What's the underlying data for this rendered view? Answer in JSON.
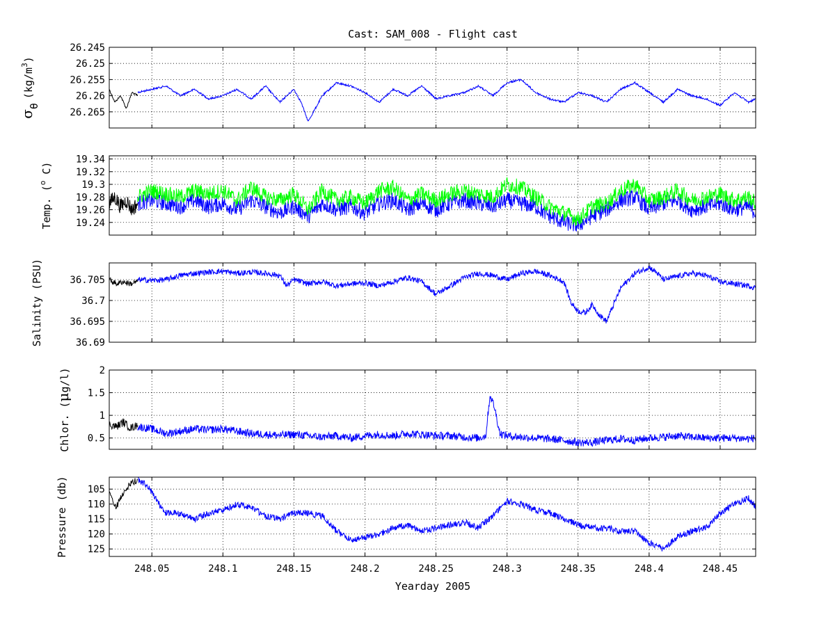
{
  "figure": {
    "title": "Cast: SAM_008 - Flight cast",
    "xlabel": "Yearday 2005"
  },
  "colors": {
    "background": "#ffffff",
    "axes": "#000000",
    "grid": "#000000",
    "black_series": "#000000",
    "blue_series": "#0000ff",
    "green_series": "#00ff00"
  },
  "chart_data": [
    {
      "type": "line",
      "panel": "sigma-theta",
      "ylabel_main": "σ",
      "ylabel_sub": "θ",
      "ylabel_units": "(kg/m",
      "ylabel_units_sup": "3",
      "ylabel_units_end": ")",
      "y_reversed": true,
      "ylim": [
        26.245,
        26.27
      ],
      "yticks": [
        26.245,
        26.25,
        26.255,
        26.26,
        26.265
      ],
      "ytick_labels": [
        "26.245",
        "26.25",
        "26.255",
        "26.26",
        "26.265"
      ],
      "xlim": [
        248.02,
        248.475
      ],
      "xticks": [
        248.05,
        248.1,
        248.15,
        248.2,
        248.25,
        248.3,
        248.35,
        248.4,
        248.45
      ],
      "grid": true,
      "series": [
        {
          "color": "black",
          "x": [
            248.02,
            248.024,
            248.028,
            248.032,
            248.036,
            248.04
          ],
          "y": [
            26.258,
            26.262,
            26.26,
            26.264,
            26.259,
            26.26
          ]
        },
        {
          "color": "blue",
          "x": [
            248.04,
            248.05,
            248.06,
            248.07,
            248.08,
            248.09,
            248.1,
            248.11,
            248.12,
            248.13,
            248.14,
            248.15,
            248.155,
            248.16,
            248.17,
            248.18,
            248.19,
            248.2,
            248.21,
            248.22,
            248.23,
            248.24,
            248.25,
            248.26,
            248.27,
            248.28,
            248.29,
            248.3,
            248.31,
            248.32,
            248.33,
            248.34,
            248.35,
            248.36,
            248.37,
            248.38,
            248.39,
            248.4,
            248.41,
            248.42,
            248.43,
            248.44,
            248.45,
            248.46,
            248.47,
            248.475
          ],
          "y": [
            26.259,
            26.258,
            26.257,
            26.26,
            26.258,
            26.261,
            26.26,
            26.258,
            26.261,
            26.257,
            26.262,
            26.258,
            26.262,
            26.268,
            26.26,
            26.256,
            26.257,
            26.259,
            26.262,
            26.258,
            26.26,
            26.257,
            26.261,
            26.26,
            26.259,
            26.257,
            26.26,
            26.256,
            26.255,
            26.259,
            26.261,
            26.262,
            26.259,
            26.26,
            26.262,
            26.258,
            26.256,
            26.259,
            26.262,
            26.258,
            26.26,
            26.261,
            26.263,
            26.259,
            26.262,
            26.261
          ]
        }
      ]
    },
    {
      "type": "line",
      "panel": "temperature",
      "ylabel_main": "Temp. (",
      "ylabel_sup": "o",
      "ylabel_end": " C)",
      "y_reversed": false,
      "ylim": [
        19.22,
        19.345
      ],
      "yticks": [
        19.24,
        19.26,
        19.28,
        19.3,
        19.32,
        19.34
      ],
      "ytick_labels": [
        "19.24",
        "19.26",
        "19.28",
        "19.3",
        "19.32",
        "19.34"
      ],
      "xlim": [
        248.02,
        248.475
      ],
      "xticks": [
        248.05,
        248.1,
        248.15,
        248.2,
        248.25,
        248.3,
        248.35,
        248.4,
        248.45
      ],
      "grid": true,
      "series": [
        {
          "color": "black",
          "x": [
            248.02,
            248.024,
            248.028,
            248.032,
            248.036,
            248.04
          ],
          "y": [
            19.27,
            19.28,
            19.265,
            19.275,
            19.26,
            19.27
          ]
        },
        {
          "color": "blue",
          "x": [
            248.04,
            248.05,
            248.06,
            248.07,
            248.08,
            248.09,
            248.1,
            248.11,
            248.12,
            248.13,
            248.14,
            248.15,
            248.16,
            248.17,
            248.18,
            248.19,
            248.2,
            248.21,
            248.22,
            248.23,
            248.24,
            248.25,
            248.26,
            248.27,
            248.28,
            248.29,
            248.3,
            248.31,
            248.32,
            248.33,
            248.34,
            248.35,
            248.36,
            248.37,
            248.38,
            248.39,
            248.4,
            248.41,
            248.42,
            248.43,
            248.44,
            248.45,
            248.46,
            248.47,
            248.475
          ],
          "y": [
            19.27,
            19.275,
            19.27,
            19.265,
            19.275,
            19.265,
            19.27,
            19.26,
            19.275,
            19.265,
            19.255,
            19.265,
            19.25,
            19.27,
            19.26,
            19.265,
            19.255,
            19.27,
            19.275,
            19.26,
            19.27,
            19.26,
            19.27,
            19.275,
            19.27,
            19.265,
            19.275,
            19.27,
            19.265,
            19.25,
            19.24,
            19.235,
            19.25,
            19.26,
            19.275,
            19.28,
            19.26,
            19.27,
            19.275,
            19.26,
            19.265,
            19.27,
            19.26,
            19.265,
            19.255
          ]
        },
        {
          "color": "green",
          "x": [
            248.04,
            248.05,
            248.06,
            248.07,
            248.08,
            248.09,
            248.1,
            248.11,
            248.12,
            248.13,
            248.14,
            248.15,
            248.16,
            248.17,
            248.18,
            248.19,
            248.2,
            248.21,
            248.22,
            248.23,
            248.24,
            248.25,
            248.26,
            248.27,
            248.28,
            248.29,
            248.3,
            248.31,
            248.32,
            248.33,
            248.34,
            248.35,
            248.36,
            248.37,
            248.38,
            248.39,
            248.4,
            248.41,
            248.42,
            248.43,
            248.44,
            248.45,
            248.46,
            248.47,
            248.475
          ],
          "y": [
            19.28,
            19.29,
            19.285,
            19.28,
            19.29,
            19.285,
            19.29,
            19.275,
            19.295,
            19.28,
            19.275,
            19.285,
            19.26,
            19.29,
            19.275,
            19.28,
            19.27,
            19.29,
            19.295,
            19.275,
            19.285,
            19.275,
            19.285,
            19.29,
            19.285,
            19.28,
            19.3,
            19.295,
            19.28,
            19.265,
            19.255,
            19.245,
            19.265,
            19.27,
            19.29,
            19.3,
            19.275,
            19.28,
            19.29,
            19.275,
            19.28,
            19.285,
            19.275,
            19.28,
            19.27
          ]
        }
      ]
    },
    {
      "type": "line",
      "panel": "salinity",
      "ylabel_main": "Salinity (PSU)",
      "y_reversed": false,
      "ylim": [
        36.69,
        36.709
      ],
      "yticks": [
        36.69,
        36.695,
        36.7,
        36.705
      ],
      "ytick_labels": [
        "36.69",
        "36.695",
        "36.7",
        "36.705"
      ],
      "xlim": [
        248.02,
        248.475
      ],
      "xticks": [
        248.05,
        248.1,
        248.15,
        248.2,
        248.25,
        248.3,
        248.35,
        248.4,
        248.45
      ],
      "grid": true,
      "series": [
        {
          "color": "black",
          "x": [
            248.02,
            248.025,
            248.03,
            248.035,
            248.04
          ],
          "y": [
            36.705,
            36.704,
            36.7045,
            36.704,
            36.7045
          ]
        },
        {
          "color": "blue",
          "x": [
            248.04,
            248.05,
            248.06,
            248.07,
            248.08,
            248.09,
            248.1,
            248.11,
            248.12,
            248.13,
            248.14,
            248.145,
            248.15,
            248.16,
            248.17,
            248.18,
            248.19,
            248.2,
            248.21,
            248.22,
            248.23,
            248.24,
            248.25,
            248.26,
            248.27,
            248.28,
            248.29,
            248.3,
            248.31,
            248.32,
            248.33,
            248.34,
            248.345,
            248.35,
            248.355,
            248.36,
            248.365,
            248.37,
            248.38,
            248.39,
            248.4,
            248.405,
            248.41,
            248.42,
            248.43,
            248.44,
            248.45,
            248.46,
            248.47,
            248.475
          ],
          "y": [
            36.705,
            36.7048,
            36.705,
            36.706,
            36.7065,
            36.7068,
            36.707,
            36.7065,
            36.7068,
            36.7065,
            36.706,
            36.7035,
            36.705,
            36.704,
            36.7045,
            36.7035,
            36.704,
            36.7042,
            36.7035,
            36.7045,
            36.7055,
            36.7045,
            36.7015,
            36.7035,
            36.7055,
            36.7065,
            36.706,
            36.705,
            36.7065,
            36.707,
            36.706,
            36.7045,
            36.6995,
            36.6975,
            36.697,
            36.699,
            36.6965,
            36.695,
            36.703,
            36.7065,
            36.708,
            36.7068,
            36.705,
            36.7058,
            36.7065,
            36.706,
            36.7045,
            36.704,
            36.7035,
            36.703
          ]
        }
      ]
    },
    {
      "type": "line",
      "panel": "chlorophyll",
      "ylabel_main": "Chlor. (",
      "ylabel_mu": "μ",
      "ylabel_end": "g/l)",
      "y_reversed": false,
      "ylim": [
        0.25,
        2
      ],
      "yticks": [
        0.5,
        1,
        1.5,
        2
      ],
      "ytick_labels": [
        "0.5",
        "1",
        "1.5",
        "2"
      ],
      "xlim": [
        248.02,
        248.475
      ],
      "xticks": [
        248.05,
        248.1,
        248.15,
        248.2,
        248.25,
        248.3,
        248.35,
        248.4,
        248.45
      ],
      "grid": true,
      "series": [
        {
          "color": "black",
          "x": [
            248.02,
            248.025,
            248.03,
            248.035,
            248.04
          ],
          "y": [
            0.8,
            0.75,
            0.85,
            0.72,
            0.78
          ]
        },
        {
          "color": "blue",
          "x": [
            248.04,
            248.05,
            248.06,
            248.07,
            248.08,
            248.09,
            248.1,
            248.11,
            248.12,
            248.13,
            248.14,
            248.15,
            248.16,
            248.17,
            248.18,
            248.19,
            248.2,
            248.21,
            248.22,
            248.23,
            248.24,
            248.25,
            248.26,
            248.27,
            248.28,
            248.285,
            248.288,
            248.291,
            248.295,
            248.3,
            248.31,
            248.32,
            248.33,
            248.34,
            248.35,
            248.36,
            248.37,
            248.38,
            248.39,
            248.4,
            248.41,
            248.42,
            248.43,
            248.44,
            248.45,
            248.46,
            248.47,
            248.475
          ],
          "y": [
            0.75,
            0.7,
            0.6,
            0.65,
            0.7,
            0.68,
            0.7,
            0.65,
            0.6,
            0.58,
            0.56,
            0.58,
            0.55,
            0.52,
            0.55,
            0.5,
            0.55,
            0.58,
            0.55,
            0.6,
            0.58,
            0.55,
            0.55,
            0.52,
            0.5,
            0.55,
            1.45,
            1.2,
            0.6,
            0.55,
            0.52,
            0.5,
            0.48,
            0.45,
            0.4,
            0.4,
            0.45,
            0.48,
            0.45,
            0.5,
            0.52,
            0.55,
            0.52,
            0.5,
            0.5,
            0.5,
            0.48,
            0.5
          ]
        }
      ]
    },
    {
      "type": "line",
      "panel": "pressure",
      "ylabel_main": "Pressure (db)",
      "y_reversed": true,
      "ylim": [
        101,
        127.5
      ],
      "yticks": [
        105,
        110,
        115,
        120,
        125
      ],
      "ytick_labels": [
        "105",
        "110",
        "115",
        "120",
        "125"
      ],
      "xlim": [
        248.02,
        248.475
      ],
      "xticks": [
        248.05,
        248.1,
        248.15,
        248.2,
        248.25,
        248.3,
        248.35,
        248.4,
        248.45
      ],
      "xtick_labels": [
        "248.05",
        "248.1",
        "248.15",
        "248.2",
        "248.25",
        "248.3",
        "248.35",
        "248.4",
        "248.45"
      ],
      "grid": true,
      "series": [
        {
          "color": "black",
          "x": [
            248.02,
            248.025,
            248.03,
            248.035,
            248.04
          ],
          "y": [
            106,
            111,
            106,
            103,
            102
          ]
        },
        {
          "color": "blue",
          "x": [
            248.04,
            248.045,
            248.05,
            248.055,
            248.06,
            248.07,
            248.08,
            248.09,
            248.1,
            248.11,
            248.12,
            248.13,
            248.14,
            248.15,
            248.16,
            248.17,
            248.18,
            248.19,
            248.2,
            248.21,
            248.22,
            248.23,
            248.24,
            248.25,
            248.26,
            248.27,
            248.28,
            248.29,
            248.3,
            248.31,
            248.32,
            248.33,
            248.34,
            248.35,
            248.36,
            248.37,
            248.38,
            248.39,
            248.4,
            248.41,
            248.42,
            248.43,
            248.44,
            248.45,
            248.46,
            248.47,
            248.475
          ],
          "y": [
            102,
            103,
            106,
            110,
            113,
            113,
            115,
            113,
            112,
            110,
            111,
            114,
            115,
            113,
            113,
            114,
            119,
            122,
            121,
            120,
            118,
            117,
            119,
            118,
            117,
            116,
            118,
            114,
            109,
            110,
            112,
            113,
            115,
            117,
            118,
            118,
            119,
            119,
            123,
            125,
            121,
            119,
            118,
            113,
            110,
            108,
            111
          ]
        }
      ]
    }
  ]
}
